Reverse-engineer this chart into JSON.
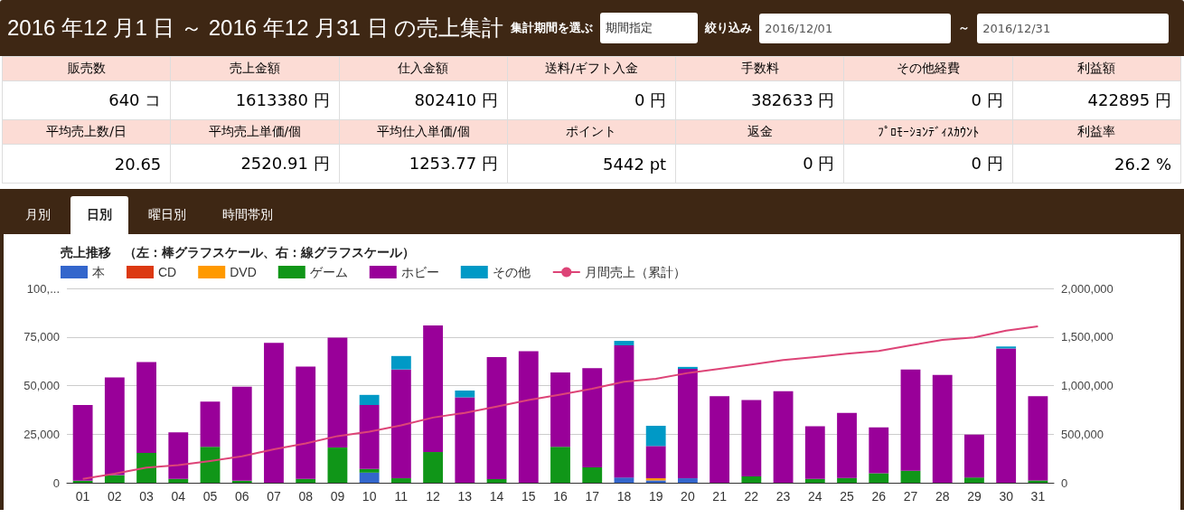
{
  "chart_data": [
    {
      "type": "other",
      "title": "2016 年12 月1 日 ～ 2016 年12 月31 日 の売上集計",
      "annotations": [
        "集計期間を選ぶ",
        "期間指定",
        "絞り込み",
        "2016/12/01",
        "～",
        "2016/12/31",
        "販売数",
        "売上金額",
        "仕入金額",
        "送料/ギフト入金",
        "手数料",
        "その他経費",
        "利益額",
        "640 コ",
        "1613380 円",
        "802410 円",
        "0 円",
        "382633 円",
        "0 円",
        "422895 円",
        "平均売上数/日",
        "平均売上単価/個",
        "平均仕入単価/個",
        "ポイント",
        "返金",
        "ﾌﾟﾛﾓｰｼｮﾝﾃﾞｨｽｶｳﾝﾄ",
        "利益率",
        "20.65",
        "2520.91 円",
        "1253.77 円",
        "5442 pt",
        "0 円",
        "0 円",
        "26.2 %",
        "月別",
        "日別",
        "曜日別",
        "時間帯別"
      ]
    },
    {
      "type": "bar",
      "title": "売上推移　（左：棒グラフスケール、右：線グラフスケール）",
      "stacked": true,
      "grid": "y",
      "legend": "top left",
      "marker": "none",
      "categories": [
        "01",
        "02",
        "03",
        "04",
        "05",
        "06",
        "07",
        "08",
        "09",
        "10",
        "11",
        "12",
        "13",
        "14",
        "15",
        "16",
        "17",
        "18",
        "19",
        "20",
        "21",
        "22",
        "23",
        "24",
        "25",
        "26",
        "27",
        "28",
        "29",
        "30",
        "31"
      ],
      "ylim": [
        0,
        100000
      ],
      "yticks": [
        0,
        {
          "value": 25000,
          "label": "25,000"
        },
        {
          "value": 50000,
          "label": "50,000"
        },
        {
          "value": 75000,
          "label": "75,000"
        },
        {
          "value": 100000,
          "label": "100,..."
        }
      ],
      "y2lim": [
        0,
        2000000
      ],
      "y2ticks": [
        0,
        {
          "value": 500000,
          "label": "500,000"
        },
        {
          "value": 1000000,
          "label": "1,000,000"
        },
        {
          "value": 1500000,
          "label": "1,500,000"
        },
        {
          "value": 2000000,
          "label": "2,000,000"
        }
      ],
      "series": [
        {
          "name": "本",
          "color": "#3366cc",
          "values": [
            0,
            0,
            0,
            0,
            0,
            0,
            0,
            0,
            0,
            5200,
            0,
            0,
            0,
            0,
            0,
            0,
            0,
            2700,
            1200,
            2300,
            0,
            0,
            0,
            0,
            0,
            0,
            0,
            0,
            0,
            0,
            0
          ]
        },
        {
          "name": "CD",
          "color": "#dc3912",
          "values": [
            0,
            0,
            0,
            0,
            0,
            0,
            0,
            0,
            0,
            0,
            0,
            0,
            0,
            0,
            0,
            0,
            0,
            0,
            0,
            0,
            0,
            0,
            0,
            0,
            0,
            0,
            0,
            0,
            0,
            0,
            0
          ]
        },
        {
          "name": "DVD",
          "color": "#ff9900",
          "values": [
            0,
            0,
            0,
            0,
            0,
            0,
            0,
            0,
            0,
            0,
            0,
            0,
            0,
            0,
            0,
            0,
            0,
            0,
            1100,
            0,
            0,
            0,
            0,
            0,
            0,
            0,
            0,
            0,
            0,
            0,
            0
          ]
        },
        {
          "name": "ゲーム",
          "color": "#109618",
          "values": [
            1000,
            3900,
            15400,
            2000,
            18500,
            1000,
            0,
            2000,
            18100,
            1900,
            2300,
            15800,
            0,
            1900,
            0,
            18500,
            7900,
            0,
            0,
            0,
            0,
            3300,
            0,
            2000,
            2500,
            4900,
            6200,
            0,
            2700,
            0,
            1200
          ]
        },
        {
          "name": "ホビー",
          "color": "#990099",
          "values": [
            39000,
            50300,
            46700,
            23900,
            23200,
            48400,
            72000,
            57800,
            56600,
            32900,
            56000,
            65100,
            44000,
            62800,
            67700,
            38200,
            51000,
            68000,
            16600,
            56300,
            44500,
            39300,
            47100,
            27100,
            33400,
            23600,
            52000,
            55500,
            22100,
            69100,
            43300
          ]
        },
        {
          "name": "その他",
          "color": "#0099c6",
          "values": [
            0,
            0,
            0,
            0,
            0,
            0,
            0,
            0,
            0,
            5200,
            6900,
            0,
            3500,
            0,
            0,
            0,
            0,
            2300,
            10400,
            1000,
            0,
            0,
            0,
            0,
            0,
            0,
            0,
            0,
            0,
            1000,
            0
          ]
        },
        {
          "name": "月間売上（累計）",
          "type": "line",
          "axis": "y2",
          "color": "#dd4477",
          "values": [
            40000,
            94000,
            156000,
            182000,
            224000,
            273000,
            345000,
            405000,
            480000,
            525000,
            590000,
            671000,
            719000,
            783000,
            851000,
            908000,
            967000,
            1040000,
            1069000,
            1129000,
            1173000,
            1216000,
            1263000,
            1292000,
            1328000,
            1356000,
            1414000,
            1470000,
            1495000,
            1565000,
            1609000
          ]
        }
      ]
    }
  ]
}
